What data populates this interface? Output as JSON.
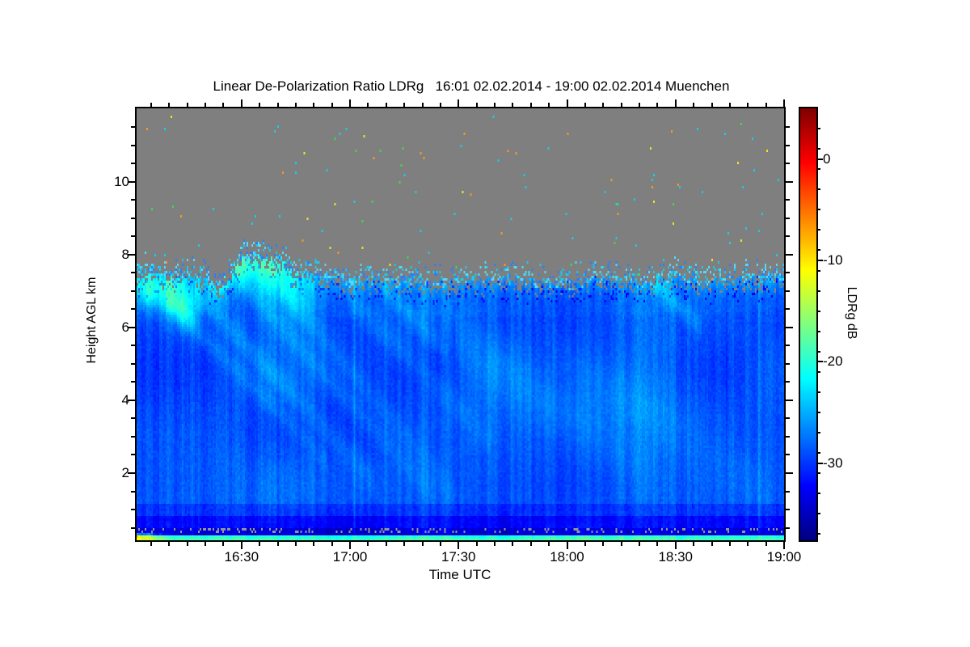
{
  "title": "Linear De-Polarization Ratio LDRg   16:01 02.02.2014 - 19:00 02.02.2014 Muenchen",
  "chart_data": {
    "type": "heatmap",
    "title": "Linear De-Polarization Ratio LDRg   16:01 02.02.2014 - 19:00 02.02.2014 Muenchen",
    "xlabel": "Time UTC",
    "ylabel": "Height AGL km",
    "station": "Muenchen",
    "x_start": "16:01",
    "x_end": "19:00",
    "x_total_minutes": 179,
    "x_ticks": [
      {
        "label": "16:30",
        "t": 29
      },
      {
        "label": "17:00",
        "t": 59
      },
      {
        "label": "17:30",
        "t": 89
      },
      {
        "label": "18:00",
        "t": 119
      },
      {
        "label": "18:30",
        "t": 149
      },
      {
        "label": "19:00",
        "t": 179
      }
    ],
    "x_minor_step_min": 5,
    "x_minor_start_min": 4,
    "y_km_range": [
      0.156,
      12.02
    ],
    "y_ticks": [
      {
        "label": "10",
        "h": 10
      },
      {
        "label": "8",
        "h": 8
      },
      {
        "label": "6",
        "h": 6
      },
      {
        "label": "4",
        "h": 4
      },
      {
        "label": "2",
        "h": 2
      }
    ],
    "y_minor_step_km": 0.5,
    "colorbar": {
      "label": "LDRg dB",
      "colormap": "jet",
      "range_db": [
        -37.6,
        5
      ],
      "ticks": [
        {
          "label": "0",
          "v": 0
        },
        {
          "label": "-10",
          "v": -10
        },
        {
          "label": "-20",
          "v": -20
        },
        {
          "label": "-30",
          "v": -30
        }
      ],
      "minor_step_db": 2
    },
    "no_data_color": "#7f7f7f",
    "features": {
      "cloud_top_km": [
        [
          0,
          7.35
        ],
        [
          4,
          7.5
        ],
        [
          9,
          7.3
        ],
        [
          14,
          7.45
        ],
        [
          19,
          7.3
        ],
        [
          24,
          7.15
        ],
        [
          29,
          7.9
        ],
        [
          36,
          7.85
        ],
        [
          43,
          7.5
        ],
        [
          50,
          7.3
        ],
        [
          58,
          7.2
        ],
        [
          70,
          7.25
        ],
        [
          85,
          7.15
        ],
        [
          100,
          7.25
        ],
        [
          112,
          7.15
        ],
        [
          125,
          7.25
        ],
        [
          138,
          7.2
        ],
        [
          148,
          7.4
        ],
        [
          158,
          7.2
        ],
        [
          168,
          7.3
        ],
        [
          179,
          7.35
        ]
      ],
      "bands_db": [
        {
          "max_h": 0.22,
          "db": -19.3
        },
        {
          "max_h": 0.31,
          "db": -20.3
        },
        {
          "max_h": 0.52,
          "db": -34.0
        },
        {
          "max_h": 0.8,
          "db": -32.3
        },
        {
          "max_h": 1.15,
          "db": -30.3
        },
        {
          "max_h": 13.0,
          "db": -28.7
        }
      ],
      "boundary_brighten": {
        "depth_km": 0.5,
        "db": 2.2,
        "halo_km": 0.9,
        "halo_db": 0.6
      },
      "bright_blobs": [
        [
          3,
          7.05,
          2.5,
          0.35,
          7.5
        ],
        [
          10,
          6.95,
          3.5,
          0.45,
          8.0
        ],
        [
          14,
          6.45,
          2.5,
          0.4,
          5.0
        ],
        [
          22,
          7.2,
          3.0,
          0.4,
          4.5
        ],
        [
          29,
          7.7,
          4.0,
          0.35,
          7.0
        ],
        [
          37,
          7.45,
          3.5,
          0.5,
          6.0
        ],
        [
          45,
          7.0,
          4.0,
          0.6,
          3.5
        ],
        [
          15,
          1.6,
          18.0,
          0.9,
          1.3
        ],
        [
          125,
          4.0,
          20.0,
          0.8,
          1.0
        ]
      ],
      "fall_streaks": [
        [
          8,
          6.8,
          -0.1,
          45,
          0.22,
          2.2
        ],
        [
          16,
          7.0,
          -0.105,
          50,
          0.28,
          2.4
        ],
        [
          28,
          7.35,
          -0.11,
          55,
          0.25,
          2.0
        ],
        [
          40,
          7.1,
          -0.12,
          48,
          0.3,
          1.8
        ],
        [
          58,
          6.9,
          -0.1,
          40,
          0.3,
          1.8
        ],
        [
          68,
          7.1,
          -0.1,
          18,
          0.2,
          2.0
        ],
        [
          88,
          5.8,
          -0.07,
          55,
          0.55,
          1.3
        ],
        [
          115,
          5.4,
          -0.065,
          60,
          0.6,
          1.2
        ],
        [
          142,
          7.35,
          -0.095,
          14,
          0.22,
          3.2
        ]
      ],
      "surface_plume": {
        "t_end_min": 9,
        "h_max_km": 0.36,
        "db_per_min": 0.95
      },
      "gray_dot_band": {
        "h_range": [
          0.38,
          0.52
        ],
        "prob": 0.16,
        "color": "#8f9698"
      },
      "speckles": {
        "near_boundary_colors": [
          "#2f7df5",
          "#19c9f0",
          "#55d9f8"
        ],
        "far_colors": [
          "#18cdea",
          "#18cdea",
          "#18cdea",
          "#f2e223",
          "#ff9420",
          "#3fd94a"
        ],
        "far_prob": 0.0045,
        "max_h_km": 11.8
      },
      "column_effects": [
        {
          "t": 172,
          "db": 1.8
        },
        {
          "t": 60,
          "db": 1.4
        },
        {
          "t": 103,
          "db": -1.2
        }
      ],
      "noise": {
        "stripe_db": 1.9,
        "lowfreq_db": 2.4,
        "pixel_db": 1.4,
        "boundary_jitter_km": 0.24,
        "cell_jitter_km": 0.24
      }
    }
  }
}
